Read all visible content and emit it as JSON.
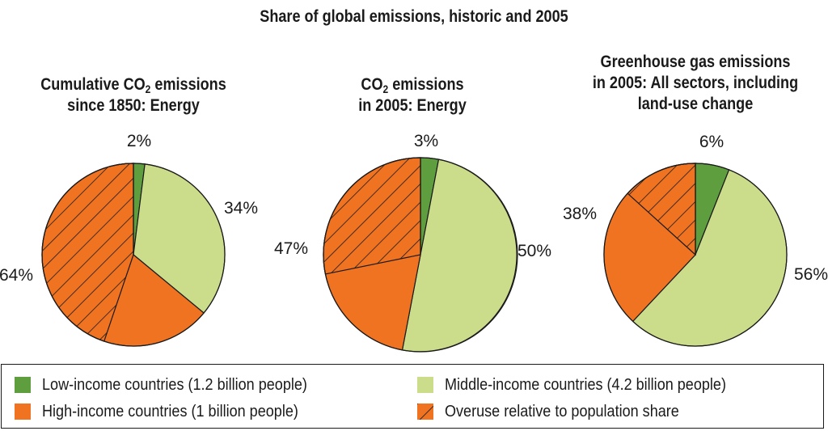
{
  "chart_data": {
    "type": "pie",
    "title": "Share of global emissions, historic and 2005",
    "colors": {
      "low": "#5e9e3e",
      "middle": "#cbdc8a",
      "high": "#f07322",
      "hatch": "#1a1a1a"
    },
    "charts": [
      {
        "title_main": "Cumulative CO",
        "title_sub": "2",
        "title_rest": " emissions",
        "title_line2": "since 1850: Energy",
        "slices": [
          {
            "group": "low",
            "value": 2,
            "label": "2%"
          },
          {
            "group": "middle",
            "value": 34,
            "label": "34%"
          },
          {
            "group": "high",
            "value": 64,
            "label": "64%",
            "overuse_fraction": 0.7
          }
        ]
      },
      {
        "title_main": "CO",
        "title_sub": "2",
        "title_rest": " emissions",
        "title_line2": "in 2005: Energy",
        "slices": [
          {
            "group": "low",
            "value": 3,
            "label": "3%"
          },
          {
            "group": "middle",
            "value": 50,
            "label": "50%"
          },
          {
            "group": "high",
            "value": 47,
            "label": "47%",
            "overuse_fraction": 0.6
          }
        ]
      },
      {
        "title_line1": "Greenhouse gas emissions",
        "title_line2": "in 2005: All sectors, including",
        "title_line3": "land-use change",
        "slices": [
          {
            "group": "low",
            "value": 6,
            "label": "6%"
          },
          {
            "group": "middle",
            "value": 56,
            "label": "56%"
          },
          {
            "group": "high",
            "value": 38,
            "label": "38%",
            "overuse_fraction": 0.35
          }
        ]
      }
    ],
    "legend": [
      {
        "key": "low",
        "label": "Low-income countries (1.2 billion people)"
      },
      {
        "key": "middle",
        "label": "Middle-income countries (4.2 billion people)"
      },
      {
        "key": "high",
        "label": "High-income countries (1 billion people)"
      },
      {
        "key": "overuse",
        "label": "Overuse relative to population share"
      }
    ]
  }
}
